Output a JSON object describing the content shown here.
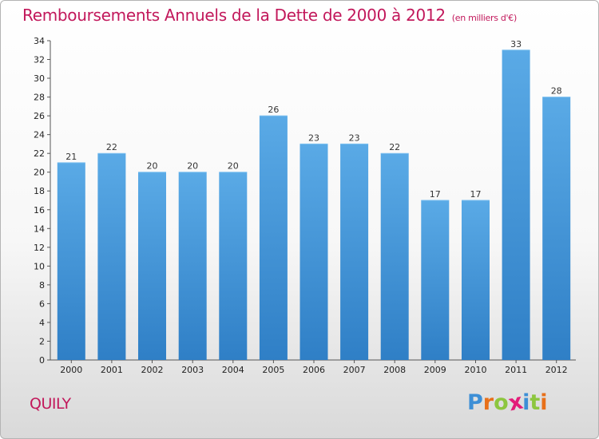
{
  "header": {
    "title": "Remboursements Annuels de la Dette de 2000 à 2012",
    "subtitle": "(en milliers d'€)"
  },
  "location": "QUILY",
  "brand": {
    "letters": [
      "P",
      "r",
      "o",
      "x",
      "i",
      "t",
      "i"
    ],
    "colors": [
      "#3d8fd6",
      "#e8701a",
      "#8dc63f",
      "#e31c79",
      "#3d8fd6",
      "#8dc63f",
      "#e8701a"
    ]
  },
  "chart_data": {
    "type": "bar",
    "categories": [
      "2000",
      "2001",
      "2002",
      "2003",
      "2004",
      "2005",
      "2006",
      "2007",
      "2008",
      "2009",
      "2010",
      "2011",
      "2012"
    ],
    "values": [
      21,
      22,
      20,
      20,
      20,
      26,
      23,
      23,
      22,
      17,
      17,
      33,
      28
    ],
    "title": "Remboursements Annuels de la Dette de 2000 à 2012",
    "subtitle": "(en milliers d'€)",
    "ylim": [
      0,
      34
    ],
    "yticks": [
      0,
      2,
      4,
      6,
      8,
      10,
      12,
      14,
      16,
      18,
      20,
      22,
      24,
      26,
      28,
      30,
      32,
      34
    ],
    "grid": false,
    "bar_color": "#4f9fdf"
  }
}
